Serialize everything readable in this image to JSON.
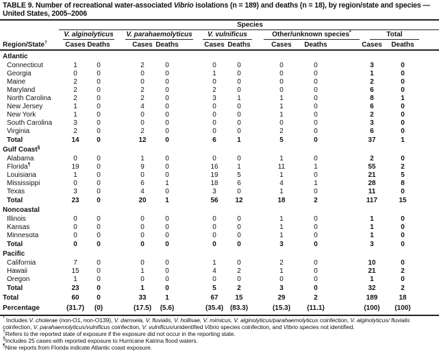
{
  "title": {
    "prefix": "TABLE 9. Number of recreational water-associated ",
    "italic": "Vibrio",
    "suffix": " isolations (n = 189) and deaths (n = 18), by region/state and species — United States, 2005–2006"
  },
  "header": {
    "species": "Species",
    "groups": [
      "V. alginolyticus",
      "V. parahaemolyticus",
      "V. vulnificus",
      "Other/unknown species",
      "Total"
    ],
    "group_sups": [
      "",
      "",
      "",
      "*",
      ""
    ],
    "region_label": "Region/State",
    "region_sup": "†",
    "cases": "Cases",
    "deaths": "Deaths"
  },
  "sections": [
    {
      "name": "Atlantic",
      "sup": "",
      "rows": [
        {
          "state": "Connecticut",
          "sup": "",
          "values": [
            "1",
            "0",
            "2",
            "0",
            "0",
            "0",
            "0",
            "0",
            "3",
            "0"
          ]
        },
        {
          "state": "Georgia",
          "sup": "",
          "values": [
            "0",
            "0",
            "0",
            "0",
            "1",
            "0",
            "0",
            "0",
            "1",
            "0"
          ]
        },
        {
          "state": "Maine",
          "sup": "",
          "values": [
            "2",
            "0",
            "0",
            "0",
            "0",
            "0",
            "0",
            "0",
            "2",
            "0"
          ]
        },
        {
          "state": "Maryland",
          "sup": "",
          "values": [
            "2",
            "0",
            "2",
            "0",
            "2",
            "0",
            "0",
            "0",
            "6",
            "0"
          ]
        },
        {
          "state": "North Carolina",
          "sup": "",
          "values": [
            "2",
            "0",
            "2",
            "0",
            "3",
            "1",
            "1",
            "0",
            "8",
            "1"
          ]
        },
        {
          "state": "New Jersey",
          "sup": "",
          "values": [
            "1",
            "0",
            "4",
            "0",
            "0",
            "0",
            "1",
            "0",
            "6",
            "0"
          ]
        },
        {
          "state": "New York",
          "sup": "",
          "values": [
            "1",
            "0",
            "0",
            "0",
            "0",
            "0",
            "1",
            "0",
            "2",
            "0"
          ]
        },
        {
          "state": "South Carolina",
          "sup": "",
          "values": [
            "3",
            "0",
            "0",
            "0",
            "0",
            "0",
            "0",
            "0",
            "3",
            "0"
          ]
        },
        {
          "state": "Virginia",
          "sup": "",
          "values": [
            "2",
            "0",
            "2",
            "0",
            "0",
            "0",
            "2",
            "0",
            "6",
            "0"
          ]
        }
      ],
      "total_label": "Total",
      "total": [
        "14",
        "0",
        "12",
        "0",
        "6",
        "1",
        "5",
        "0",
        "37",
        "1"
      ]
    },
    {
      "name": "Gulf Coast",
      "sup": "§",
      "rows": [
        {
          "state": "Alabama",
          "sup": "",
          "values": [
            "0",
            "0",
            "1",
            "0",
            "0",
            "0",
            "1",
            "0",
            "2",
            "0"
          ]
        },
        {
          "state": "Florida",
          "sup": "¶",
          "values": [
            "19",
            "0",
            "9",
            "0",
            "16",
            "1",
            "11",
            "1",
            "55",
            "2"
          ]
        },
        {
          "state": "Louisiana",
          "sup": "",
          "values": [
            "1",
            "0",
            "0",
            "0",
            "19",
            "5",
            "1",
            "0",
            "21",
            "5"
          ]
        },
        {
          "state": "Mississippi",
          "sup": "",
          "values": [
            "0",
            "0",
            "6",
            "1",
            "18",
            "6",
            "4",
            "1",
            "28",
            "8"
          ]
        },
        {
          "state": "Texas",
          "sup": "",
          "values": [
            "3",
            "0",
            "4",
            "0",
            "3",
            "0",
            "1",
            "0",
            "11",
            "0"
          ]
        }
      ],
      "total_label": "Total",
      "total": [
        "23",
        "0",
        "20",
        "1",
        "56",
        "12",
        "18",
        "2",
        "117",
        "15"
      ]
    },
    {
      "name": "Noncoastal",
      "sup": "",
      "rows": [
        {
          "state": "Illinois",
          "sup": "",
          "values": [
            "0",
            "0",
            "0",
            "0",
            "0",
            "0",
            "1",
            "0",
            "1",
            "0"
          ]
        },
        {
          "state": "Kansas",
          "sup": "",
          "values": [
            "0",
            "0",
            "0",
            "0",
            "0",
            "0",
            "1",
            "0",
            "1",
            "0"
          ]
        },
        {
          "state": "Minnesota",
          "sup": "",
          "values": [
            "0",
            "0",
            "0",
            "0",
            "0",
            "0",
            "1",
            "0",
            "1",
            "0"
          ]
        }
      ],
      "total_label": "Total",
      "total": [
        "0",
        "0",
        "0",
        "0",
        "0",
        "0",
        "3",
        "0",
        "3",
        "0"
      ]
    },
    {
      "name": "Pacific",
      "sup": "",
      "rows": [
        {
          "state": "California",
          "sup": "",
          "values": [
            "7",
            "0",
            "0",
            "0",
            "1",
            "0",
            "2",
            "0",
            "10",
            "0"
          ]
        },
        {
          "state": "Hawaii",
          "sup": "",
          "values": [
            "15",
            "0",
            "1",
            "0",
            "4",
            "2",
            "1",
            "0",
            "21",
            "2"
          ]
        },
        {
          "state": "Oregon",
          "sup": "",
          "values": [
            "1",
            "0",
            "0",
            "0",
            "0",
            "0",
            "0",
            "0",
            "1",
            "0"
          ]
        }
      ],
      "total_label": "Total",
      "total": [
        "23",
        "0",
        "1",
        "0",
        "5",
        "2",
        "3",
        "0",
        "32",
        "2"
      ]
    }
  ],
  "grand_total": {
    "label": "Total",
    "values": [
      "60",
      "0",
      "33",
      "1",
      "67",
      "15",
      "29",
      "2",
      "189",
      "18"
    ]
  },
  "percentage": {
    "label": "Percentage",
    "values": [
      "(31.7)",
      "(0)",
      "(17.5)",
      "(5.6)",
      "(35.4)",
      "(83.3)",
      "(15.3)",
      "(11.1)",
      "(100)",
      "(100)"
    ]
  },
  "footnotes": [
    {
      "mark": "*",
      "segments": [
        {
          "t": " Includes ",
          "i": false
        },
        {
          "t": "V. cholerae",
          "i": true
        },
        {
          "t": " (non-O1, non-O139), ",
          "i": false
        },
        {
          "t": "V. damsela, V. fluvialis, V. hollisae, V. mimicus, V. alginolyticus/parahaemolyticus",
          "i": true
        },
        {
          "t": " coinfection, ",
          "i": false
        },
        {
          "t": "V. alginolyticus/ fluvialis",
          "i": true
        },
        {
          "t": " coinfection, ",
          "i": false
        },
        {
          "t": "V. parahaemolyticus/vulnificus",
          "i": true
        },
        {
          "t": " coinfection, ",
          "i": false
        },
        {
          "t": "V. vulnificus",
          "i": true
        },
        {
          "t": "/unidentified ",
          "i": false
        },
        {
          "t": "Vibrio",
          "i": true
        },
        {
          "t": " species coinfection, and ",
          "i": false
        },
        {
          "t": "Vibrio",
          "i": true
        },
        {
          "t": " species not identified.",
          "i": false
        }
      ]
    },
    {
      "mark": "†",
      "segments": [
        {
          "t": "Refers to the reported state of exposure if the exposure did not occur in the reporting state.",
          "i": false
        }
      ]
    },
    {
      "mark": "§",
      "segments": [
        {
          "t": "Includes 25 cases with reported exposure to Hurricane Katrina flood waters.",
          "i": false
        }
      ]
    },
    {
      "mark": "¶",
      "segments": [
        {
          "t": "Nine reports from Florida indicate Atlantic coast exposure.",
          "i": false
        }
      ]
    }
  ]
}
